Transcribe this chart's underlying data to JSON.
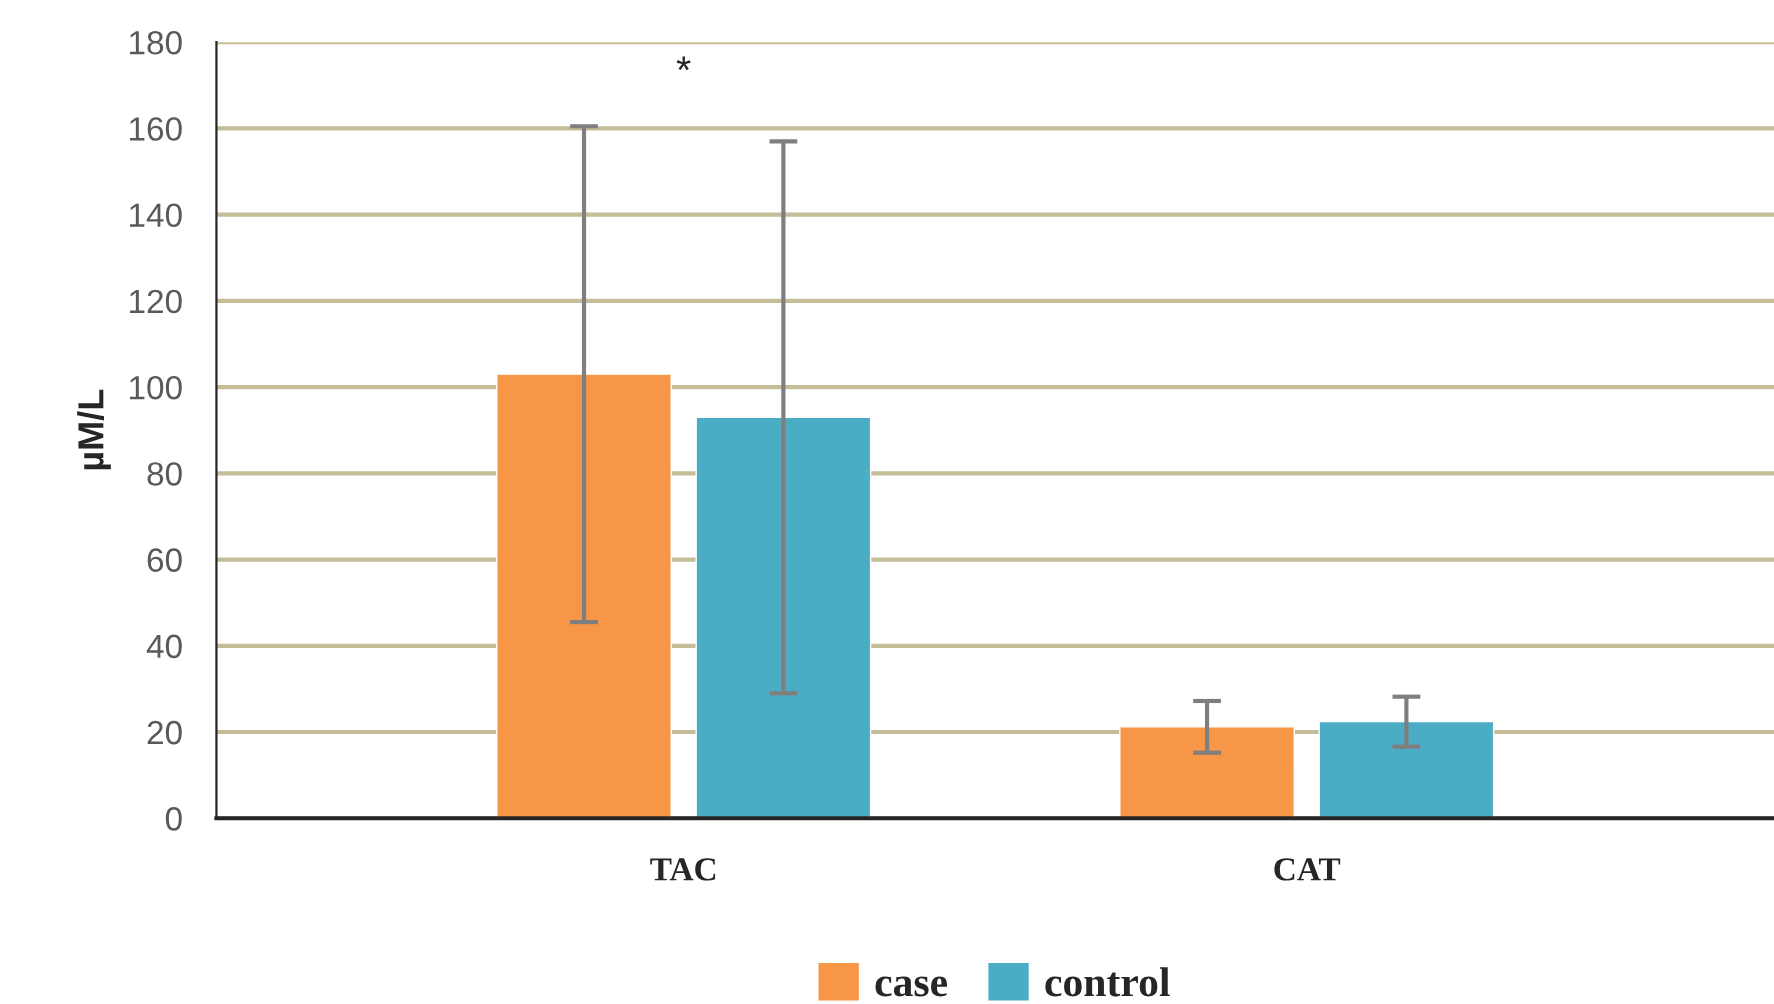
{
  "chart_data": {
    "type": "bar",
    "categories": [
      "TAC",
      "CAT"
    ],
    "ylabel": "µM/L",
    "series": [
      {
        "name": "case",
        "color": "#f79646",
        "values": [
          103,
          21.2
        ],
        "errors": [
          57.5,
          6
        ]
      },
      {
        "name": "control",
        "color": "#4bacc6",
        "values": [
          93,
          22.4
        ],
        "errors": [
          64,
          5.8
        ]
      }
    ],
    "ylim": [
      0,
      180
    ],
    "yticks": [
      0,
      20,
      40,
      60,
      80,
      100,
      120,
      140,
      160,
      180
    ],
    "grid": "y",
    "legend": "bottom",
    "annotations": [
      "*"
    ]
  }
}
